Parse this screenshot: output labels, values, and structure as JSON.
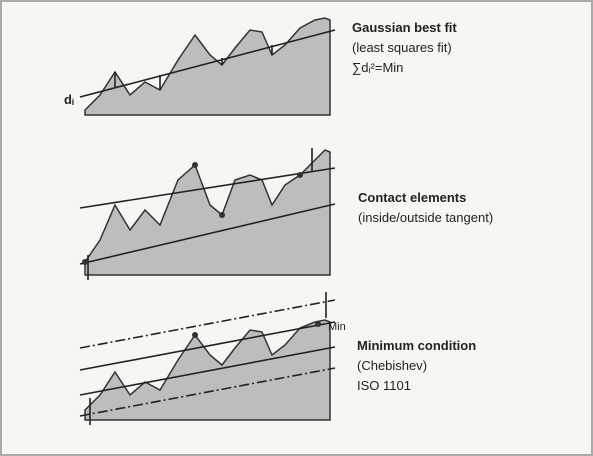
{
  "panels": [
    {
      "title": "Gaussian best fit",
      "lines": [
        "(least squares fit)",
        "∑dᵢ²=Min"
      ],
      "marker": "dᵢ"
    },
    {
      "title": "Contact elements",
      "lines": [
        "(inside/outside tangent)"
      ]
    },
    {
      "title": "Minimum condition",
      "lines": [
        "(Chebishev)",
        "ISO 1101"
      ],
      "marker": "Min"
    }
  ]
}
